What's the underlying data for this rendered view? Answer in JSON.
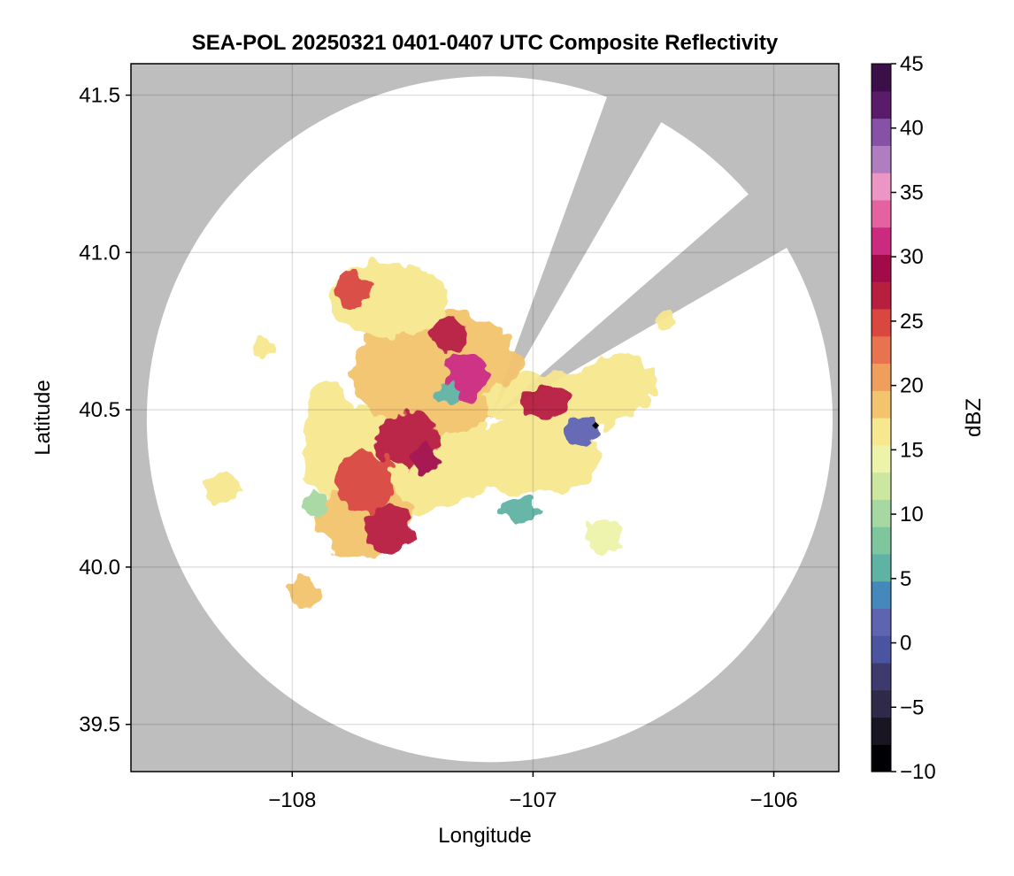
{
  "chart_data": {
    "type": "heatmap",
    "title": "SEA-POL 20250321 0401-0407 UTC Composite Reflectivity",
    "xlabel": "Longitude",
    "ylabel": "Latitude",
    "xlim": [
      -108.67,
      -105.73
    ],
    "ylim": [
      39.35,
      41.6
    ],
    "xticks": [
      -108,
      -107,
      -106
    ],
    "xtick_labels": [
      "−108",
      "−107",
      "−106"
    ],
    "yticks": [
      39.5,
      40.0,
      40.5,
      41.0,
      41.5
    ],
    "ytick_labels": [
      "39.5",
      "40.0",
      "40.5",
      "41.0",
      "41.5"
    ],
    "grid": true,
    "background_color": "#bebebe",
    "coverage_color": "#ffffff",
    "radar": {
      "center_lon": -107.18,
      "center_lat": 40.47,
      "range_deg_lat": 1.09,
      "blocked_sectors_deg_from_north": [
        [
          20,
          30
        ],
        [
          49,
          60
        ]
      ]
    },
    "marker": {
      "lon": -106.74,
      "lat": 40.45,
      "color": "#000000"
    },
    "colorbar": {
      "label": "dBZ",
      "min": -10,
      "max": 45,
      "ticks": [
        -10,
        -5,
        0,
        5,
        10,
        15,
        20,
        25,
        30,
        35,
        40,
        45
      ],
      "tick_labels": [
        "−10",
        "−5",
        "0",
        "5",
        "10",
        "15",
        "20",
        "25",
        "30",
        "35",
        "40",
        "45"
      ],
      "colors": [
        "#000004",
        "#1a1522",
        "#2f2a4a",
        "#3f3a6e",
        "#4a54a0",
        "#5e64b0",
        "#4589bb",
        "#5fb3a4",
        "#7dc69e",
        "#a6d8a2",
        "#cce8a0",
        "#eef3aa",
        "#f7e78f",
        "#f3c36d",
        "#f09e5b",
        "#e8734f",
        "#d9473f",
        "#b81f3f",
        "#a30a4a",
        "#cc2a80",
        "#e3629f",
        "#eb96c4",
        "#b07ec0",
        "#8752a6",
        "#5a1b6a",
        "#3b0f48"
      ]
    },
    "echo_regions": [
      {
        "lon": -107.55,
        "lat": 40.35,
        "rlon": 0.42,
        "rlat": 0.18,
        "dbz": 17
      },
      {
        "lon": -107.4,
        "lat": 40.62,
        "rlon": 0.35,
        "rlat": 0.2,
        "dbz": 18
      },
      {
        "lon": -107.6,
        "lat": 40.85,
        "rlon": 0.25,
        "rlat": 0.12,
        "dbz": 17
      },
      {
        "lon": -107.0,
        "lat": 40.35,
        "rlon": 0.28,
        "rlat": 0.12,
        "dbz": 16
      },
      {
        "lon": -106.9,
        "lat": 40.52,
        "rlon": 0.3,
        "rlat": 0.1,
        "dbz": 17
      },
      {
        "lon": -106.65,
        "lat": 40.58,
        "rlon": 0.15,
        "rlat": 0.1,
        "dbz": 16
      },
      {
        "lon": -107.7,
        "lat": 40.15,
        "rlon": 0.2,
        "rlat": 0.12,
        "dbz": 18
      },
      {
        "lon": -107.85,
        "lat": 40.42,
        "rlon": 0.1,
        "rlat": 0.18,
        "dbz": 16
      },
      {
        "lon": -107.52,
        "lat": 40.4,
        "rlon": 0.13,
        "rlat": 0.09,
        "dbz": 26
      },
      {
        "lon": -107.7,
        "lat": 40.27,
        "rlon": 0.12,
        "rlat": 0.1,
        "dbz": 24
      },
      {
        "lon": -107.6,
        "lat": 40.12,
        "rlon": 0.1,
        "rlat": 0.08,
        "dbz": 26
      },
      {
        "lon": -107.28,
        "lat": 40.6,
        "rlon": 0.09,
        "rlat": 0.08,
        "dbz": 31
      },
      {
        "lon": -107.35,
        "lat": 40.74,
        "rlon": 0.07,
        "rlat": 0.06,
        "dbz": 27
      },
      {
        "lon": -107.75,
        "lat": 40.88,
        "rlon": 0.07,
        "rlat": 0.06,
        "dbz": 25
      },
      {
        "lon": -106.95,
        "lat": 40.52,
        "rlon": 0.1,
        "rlat": 0.05,
        "dbz": 26
      },
      {
        "lon": -107.45,
        "lat": 40.35,
        "rlon": 0.06,
        "rlat": 0.05,
        "dbz": 30
      },
      {
        "lon": -106.8,
        "lat": 40.43,
        "rlon": 0.07,
        "rlat": 0.04,
        "dbz": 2
      },
      {
        "lon": -107.9,
        "lat": 40.2,
        "rlon": 0.05,
        "rlat": 0.04,
        "dbz": 11
      },
      {
        "lon": -107.05,
        "lat": 40.18,
        "rlon": 0.08,
        "rlat": 0.04,
        "dbz": 5
      },
      {
        "lon": -107.35,
        "lat": 40.55,
        "rlon": 0.05,
        "rlat": 0.04,
        "dbz": 6
      },
      {
        "lon": -108.3,
        "lat": 40.25,
        "rlon": 0.07,
        "rlat": 0.05,
        "dbz": 17
      },
      {
        "lon": -108.12,
        "lat": 40.7,
        "rlon": 0.04,
        "rlat": 0.03,
        "dbz": 17
      },
      {
        "lon": -107.95,
        "lat": 39.92,
        "rlon": 0.06,
        "rlat": 0.05,
        "dbz": 18
      },
      {
        "lon": -106.45,
        "lat": 40.78,
        "rlon": 0.04,
        "rlat": 0.03,
        "dbz": 16
      },
      {
        "lon": -106.7,
        "lat": 40.1,
        "rlon": 0.08,
        "rlat": 0.05,
        "dbz": 14
      }
    ]
  }
}
